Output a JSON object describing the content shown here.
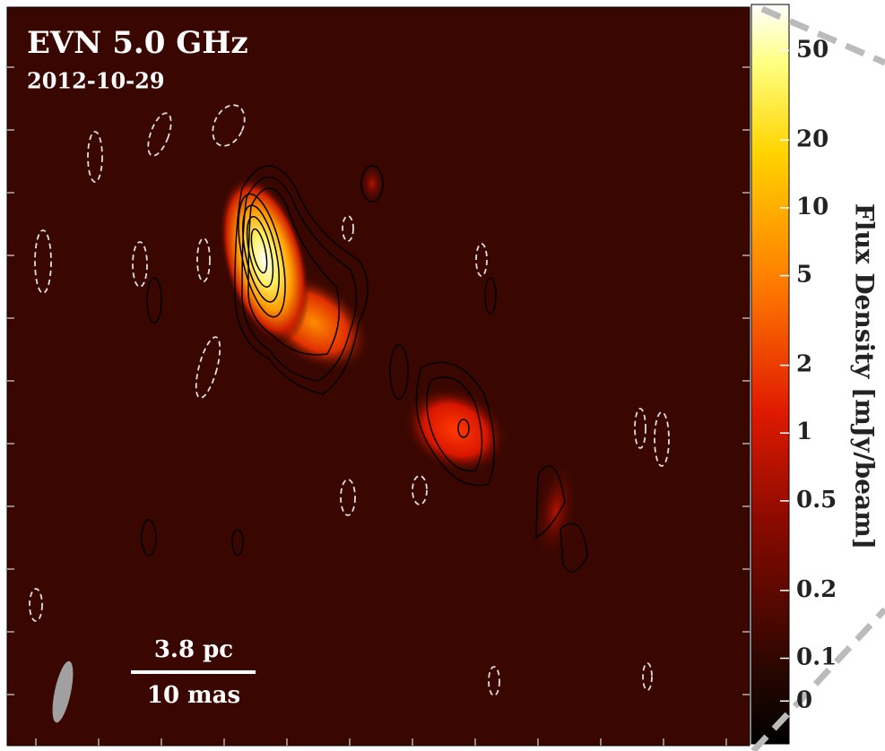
{
  "chart_data": {
    "type": "image",
    "title": "EVN 5.0 GHz",
    "subtitle": "2012-10-29",
    "scale_bar": {
      "upper_label": "3.8 pc",
      "lower_label": "10 mas"
    },
    "colorbar": {
      "label": "Flux Density [mJy/beam]",
      "scale": "symlog",
      "linthresh": 0.1,
      "linscale": 0.19,
      "ylim": [
        -0.1,
        80
      ],
      "yticks": [
        50,
        20,
        10,
        5,
        2,
        1,
        0.5,
        0.2,
        0.1,
        0
      ]
    }
  }
}
